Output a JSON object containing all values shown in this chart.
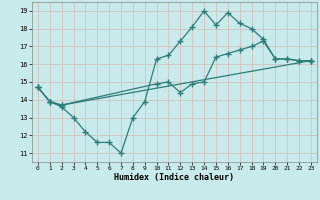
{
  "xlabel": "Humidex (Indice chaleur)",
  "bg_color": "#c8eaea",
  "grid_color": "#d4b8b8",
  "line_color": "#2d7d78",
  "xlim": [
    -0.5,
    23.5
  ],
  "ylim": [
    10.5,
    19.5
  ],
  "xticks": [
    0,
    1,
    2,
    3,
    4,
    5,
    6,
    7,
    8,
    9,
    10,
    11,
    12,
    13,
    14,
    15,
    16,
    17,
    18,
    19,
    20,
    21,
    22,
    23
  ],
  "yticks": [
    11,
    12,
    13,
    14,
    15,
    16,
    17,
    18,
    19
  ],
  "line1_x": [
    0,
    1,
    2,
    3,
    4,
    5,
    6,
    7,
    8,
    9,
    10,
    11,
    12,
    13,
    14,
    15,
    16,
    17,
    18,
    19,
    20,
    21,
    22,
    23
  ],
  "line1_y": [
    14.7,
    13.9,
    13.6,
    13.0,
    12.2,
    11.6,
    11.6,
    11.0,
    13.0,
    13.9,
    16.3,
    16.5,
    17.3,
    18.1,
    19.0,
    18.2,
    18.9,
    18.3,
    18.0,
    17.4,
    16.3,
    16.3,
    16.2,
    16.2
  ],
  "line2_x": [
    0,
    1,
    2,
    10,
    11,
    12,
    13,
    14,
    15,
    16,
    17,
    18,
    19,
    20,
    21,
    22,
    23
  ],
  "line2_y": [
    14.7,
    13.9,
    13.7,
    14.9,
    15.0,
    14.4,
    14.9,
    15.0,
    16.4,
    16.6,
    16.8,
    17.0,
    17.3,
    16.3,
    16.3,
    16.2,
    16.2
  ],
  "line3_x": [
    0,
    1,
    2,
    23
  ],
  "line3_y": [
    14.7,
    13.9,
    13.7,
    16.2
  ]
}
